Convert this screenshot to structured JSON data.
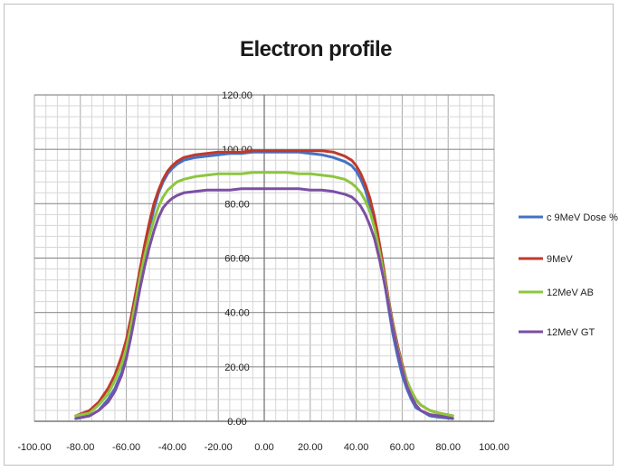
{
  "chart_data": {
    "type": "line",
    "title": "Electron profile",
    "xlabel": "",
    "ylabel": "",
    "xlim": [
      -100,
      100
    ],
    "ylim": [
      0,
      120
    ],
    "x_ticks": [
      "-100.00",
      "-80.00",
      "-60.00",
      "-40.00",
      "-20.00",
      "0.00",
      "20.00",
      "40.00",
      "60.00",
      "80.00",
      "100.00"
    ],
    "y_ticks": [
      "0.00",
      "20.00",
      "40.00",
      "60.00",
      "80.00",
      "100.00",
      "120.00"
    ],
    "grid": true,
    "legend_position": "right",
    "series": [
      {
        "name": "c 9MeV Dose %",
        "color": "#4472c4",
        "x": [
          -82,
          -76,
          -72,
          -68,
          -65,
          -62,
          -60,
          -58,
          -56,
          -54,
          -52,
          -50,
          -48,
          -46,
          -44,
          -42,
          -40,
          -38,
          -35,
          -30,
          -25,
          -20,
          -15,
          -10,
          -5,
          0,
          5,
          10,
          15,
          20,
          25,
          30,
          35,
          38,
          40,
          42,
          44,
          46,
          48,
          50,
          52,
          54,
          56,
          58,
          60,
          62,
          64,
          66,
          68,
          72,
          76,
          82
        ],
        "y": [
          1,
          2,
          4,
          8,
          12,
          18,
          24,
          32,
          42,
          52,
          62,
          71,
          78,
          84,
          88,
          91,
          93,
          94.5,
          96,
          97,
          97.5,
          98,
          98.5,
          98.5,
          99,
          99,
          99,
          99,
          99,
          98.5,
          98,
          97,
          95.5,
          94,
          92,
          89,
          85,
          79,
          72,
          63,
          53,
          42,
          32,
          24,
          17,
          12,
          8,
          5,
          4,
          2,
          1.5,
          1
        ]
      },
      {
        "name": "9MeV",
        "color": "#c0392b",
        "x": [
          -82,
          -76,
          -72,
          -68,
          -65,
          -62,
          -60,
          -58,
          -56,
          -54,
          -52,
          -50,
          -48,
          -46,
          -44,
          -42,
          -40,
          -38,
          -35,
          -30,
          -25,
          -20,
          -15,
          -10,
          -5,
          0,
          5,
          10,
          15,
          20,
          25,
          30,
          35,
          38,
          40,
          42,
          44,
          46,
          48,
          50,
          52,
          54,
          56,
          58,
          60,
          62,
          64,
          66,
          68,
          72,
          76,
          82
        ],
        "y": [
          2,
          4,
          7,
          12,
          17,
          24,
          30,
          38,
          47,
          56,
          65,
          73,
          80,
          85,
          89,
          92,
          94,
          95.5,
          97,
          98,
          98.5,
          99,
          99,
          99,
          99.5,
          99.5,
          99.5,
          99.5,
          99.5,
          99.5,
          99.5,
          99,
          97.5,
          96,
          94,
          91,
          87,
          82,
          75,
          66,
          56,
          45,
          36,
          28,
          21,
          15,
          11,
          8,
          6,
          4,
          3,
          2
        ]
      },
      {
        "name": "12MeV AB",
        "color": "#8dc63f",
        "x": [
          -82,
          -76,
          -72,
          -68,
          -65,
          -62,
          -60,
          -58,
          -56,
          -54,
          -52,
          -50,
          -48,
          -46,
          -44,
          -42,
          -40,
          -38,
          -35,
          -30,
          -25,
          -20,
          -15,
          -10,
          -5,
          0,
          5,
          10,
          15,
          20,
          25,
          30,
          35,
          38,
          40,
          42,
          44,
          46,
          48,
          50,
          52,
          54,
          56,
          58,
          60,
          62,
          64,
          66,
          68,
          72,
          76,
          82
        ],
        "y": [
          2,
          3,
          6,
          10,
          15,
          21,
          27,
          35,
          44,
          53,
          61,
          68,
          74,
          79,
          82.5,
          85,
          86.5,
          88,
          89,
          90,
          90.5,
          91,
          91,
          91,
          91.5,
          91.5,
          91.5,
          91.5,
          91,
          91,
          90.5,
          90,
          89,
          87.5,
          86,
          84,
          81,
          77,
          71,
          63,
          54,
          44,
          35,
          27,
          20,
          15,
          11,
          8,
          6,
          4,
          3,
          2
        ]
      },
      {
        "name": "12MeV GT",
        "color": "#7b4fa3",
        "x": [
          -82,
          -76,
          -72,
          -68,
          -65,
          -62,
          -60,
          -58,
          -56,
          -54,
          -52,
          -50,
          -48,
          -46,
          -44,
          -42,
          -40,
          -38,
          -35,
          -30,
          -25,
          -20,
          -15,
          -10,
          -5,
          0,
          5,
          10,
          15,
          20,
          25,
          30,
          35,
          38,
          40,
          42,
          44,
          46,
          48,
          50,
          52,
          54,
          56,
          58,
          60,
          62,
          64,
          66,
          68,
          72,
          76,
          82
        ],
        "y": [
          1,
          2,
          4,
          7,
          11,
          17,
          23,
          31,
          40,
          49,
          57,
          64,
          70,
          75,
          78.5,
          80.5,
          82,
          83,
          84,
          84.5,
          85,
          85,
          85,
          85.5,
          85.5,
          85.5,
          85.5,
          85.5,
          85.5,
          85,
          85,
          84.5,
          83.5,
          82.5,
          81,
          79,
          76,
          72,
          67,
          60,
          52,
          43,
          34,
          26,
          19,
          13,
          9,
          6,
          4,
          2.5,
          2,
          1
        ]
      }
    ]
  }
}
